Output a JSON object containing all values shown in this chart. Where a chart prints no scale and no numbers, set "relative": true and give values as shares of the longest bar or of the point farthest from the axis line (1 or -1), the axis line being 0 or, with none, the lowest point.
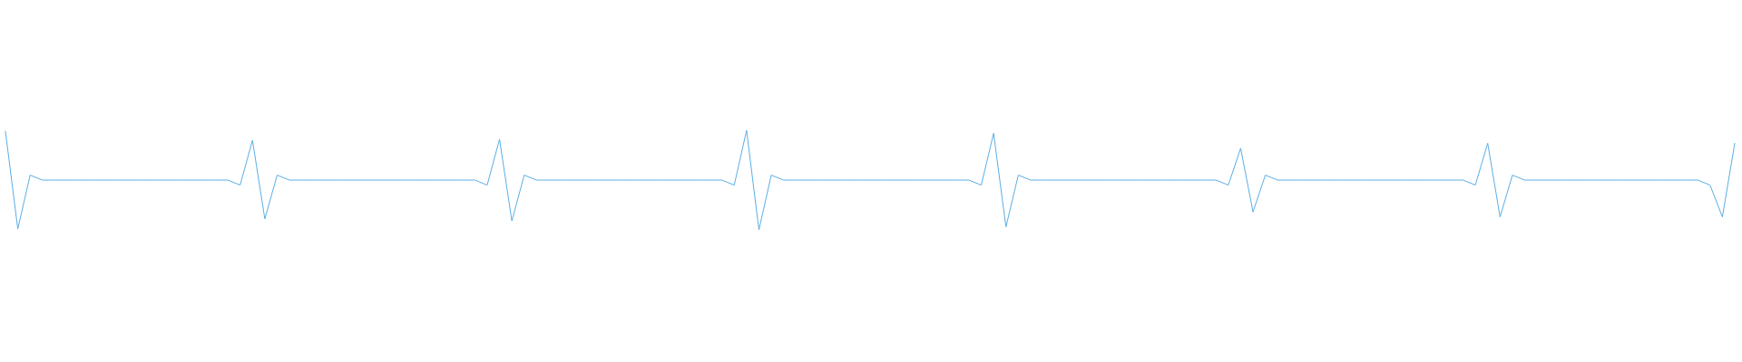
{
  "chart_data": {
    "type": "line",
    "relative": true,
    "categories": [
      null,
      null,
      null,
      null,
      null,
      null,
      null,
      null,
      null,
      null,
      null,
      null,
      null,
      null,
      null,
      null,
      null,
      null,
      null,
      null,
      null,
      null,
      null,
      null,
      null,
      null,
      null,
      null,
      null,
      null,
      null,
      null,
      null,
      null,
      null,
      null,
      null,
      null,
      null,
      null,
      null,
      null,
      null,
      null,
      null,
      null,
      null,
      null,
      null,
      null,
      null,
      null,
      null,
      null,
      null,
      null,
      null,
      null,
      null,
      null,
      null,
      null,
      null,
      null,
      null,
      null,
      null,
      null,
      null,
      null,
      null,
      null,
      null,
      null,
      null,
      null,
      null,
      null,
      null,
      null,
      null,
      null,
      null,
      null,
      null,
      null,
      null,
      null,
      null,
      null,
      null,
      null,
      null,
      null,
      null,
      null,
      null,
      null,
      null,
      null,
      null,
      null,
      null,
      null,
      null,
      null,
      null,
      null,
      null,
      null,
      null,
      null,
      null,
      null,
      null,
      null,
      null,
      null,
      null,
      null,
      null,
      null,
      null,
      null,
      null,
      null,
      null,
      null,
      null,
      null,
      null,
      null,
      null,
      null,
      null,
      null,
      null,
      null,
      null,
      null,
      null
    ],
    "series": [
      {
        "color": "#5aaee6",
        "values": [
          0.99,
          0.01,
          0.55,
          0.5,
          0.5,
          0.5,
          0.5,
          0.5,
          0.5,
          0.5,
          0.5,
          0.5,
          0.5,
          0.5,
          0.5,
          0.5,
          0.5,
          0.5,
          0.5,
          0.45,
          0.9,
          0.11,
          0.55,
          0.5,
          0.5,
          0.5,
          0.5,
          0.5,
          0.5,
          0.5,
          0.5,
          0.5,
          0.5,
          0.5,
          0.5,
          0.5,
          0.5,
          0.5,
          0.5,
          0.45,
          0.91,
          0.09,
          0.55,
          0.5,
          0.5,
          0.5,
          0.5,
          0.5,
          0.5,
          0.5,
          0.5,
          0.5,
          0.5,
          0.5,
          0.5,
          0.5,
          0.5,
          0.5,
          0.5,
          0.45,
          1,
          0,
          0.55,
          0.5,
          0.5,
          0.5,
          0.5,
          0.5,
          0.5,
          0.5,
          0.5,
          0.5,
          0.5,
          0.5,
          0.5,
          0.5,
          0.5,
          0.5,
          0.5,
          0.45,
          0.97,
          0.03,
          0.55,
          0.5,
          0.5,
          0.5,
          0.5,
          0.5,
          0.5,
          0.5,
          0.5,
          0.5,
          0.5,
          0.5,
          0.5,
          0.5,
          0.5,
          0.5,
          0.5,
          0.45,
          0.82,
          0.18,
          0.55,
          0.5,
          0.5,
          0.5,
          0.5,
          0.5,
          0.5,
          0.5,
          0.5,
          0.5,
          0.5,
          0.5,
          0.5,
          0.5,
          0.5,
          0.5,
          0.5,
          0.45,
          0.87,
          0.13,
          0.55,
          0.5,
          0.5,
          0.5,
          0.5,
          0.5,
          0.5,
          0.5,
          0.5,
          0.5,
          0.5,
          0.5,
          0.5,
          0.5,
          0.5,
          0.5,
          0.45,
          0.13,
          0.87
        ]
      }
    ]
  }
}
